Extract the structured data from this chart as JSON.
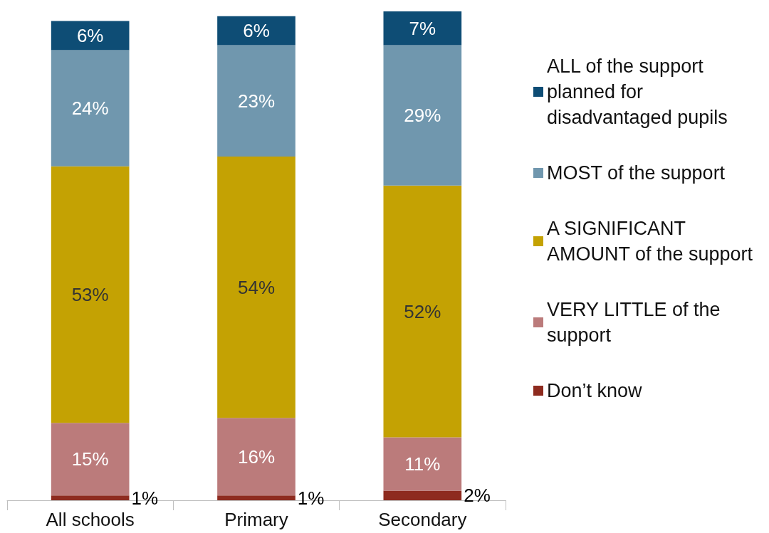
{
  "chart_data": {
    "type": "bar",
    "stacked": true,
    "categories": [
      "All schools",
      "Primary",
      "Secondary"
    ],
    "legend": "right",
    "series": [
      {
        "name": "Don’t know",
        "color": "#8e2b1f",
        "values": [
          1,
          1,
          2
        ],
        "value_labels": [
          "1%",
          "1%",
          "2%"
        ]
      },
      {
        "name": "VERY LITTLE of the support",
        "color": "#bb7b7b",
        "values": [
          15,
          16,
          11
        ],
        "value_labels": [
          "15%",
          "16%",
          "11%"
        ]
      },
      {
        "name": "A SIGNIFICANT AMOUNT of the support",
        "color": "#c4a203",
        "values": [
          53,
          54,
          52
        ],
        "value_labels": [
          "53%",
          "54%",
          "52%"
        ]
      },
      {
        "name": "MOST of the support",
        "color": "#7097ae",
        "values": [
          24,
          23,
          29
        ],
        "value_labels": [
          "24%",
          "23%",
          "29%"
        ]
      },
      {
        "name": "ALL of the support planned for disadvantaged pupils",
        "color": "#0e4d75",
        "values": [
          6,
          6,
          7
        ],
        "value_labels": [
          "6%",
          "6%",
          "7%"
        ]
      }
    ]
  }
}
